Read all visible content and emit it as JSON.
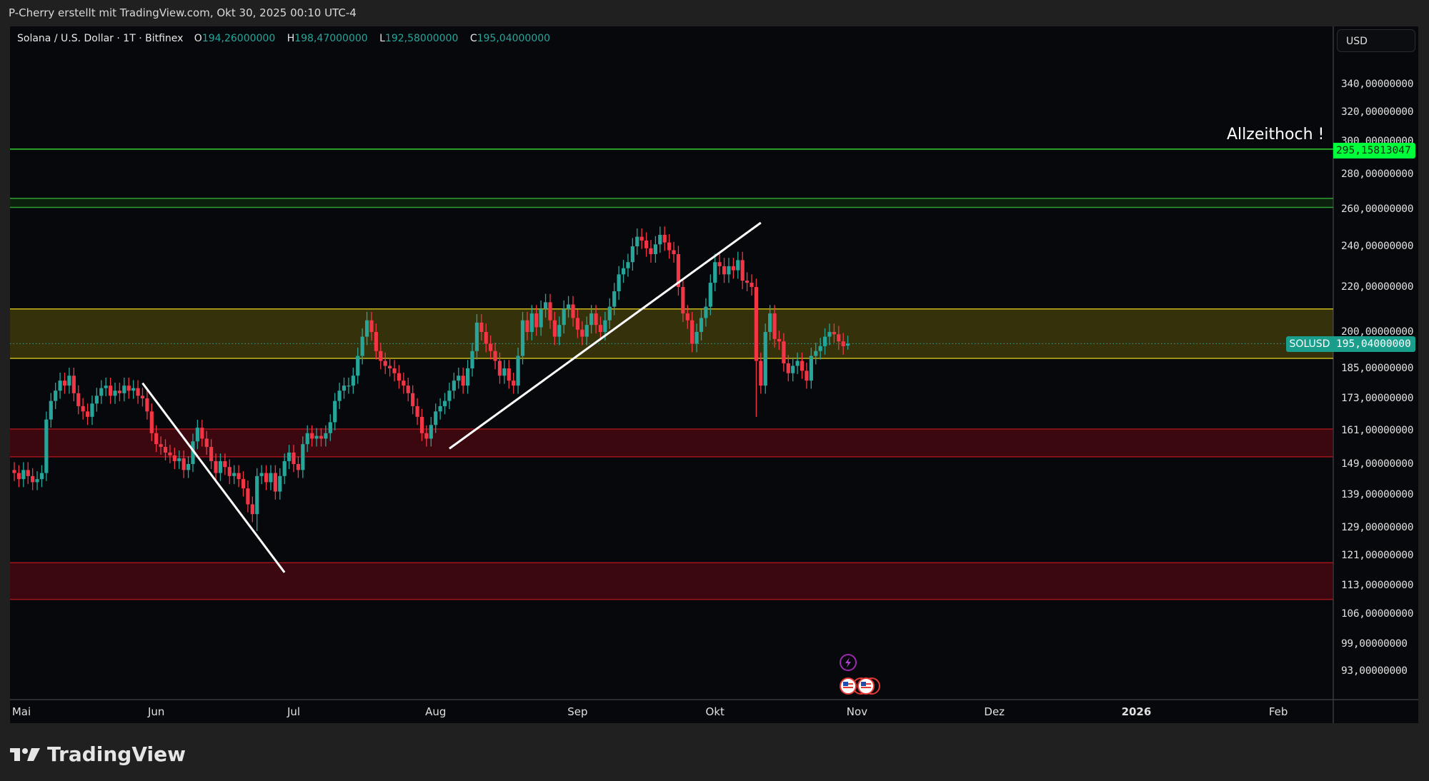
{
  "header": {
    "attribution": "P-Cherry erstellt mit TradingView.com, Okt 30, 2025 00:10 UTC-4"
  },
  "legend": {
    "symbol": "Solana / U.S. Dollar · 1T · Bitfinex",
    "open_label": "O",
    "open": "194,26000000",
    "high_label": "H",
    "high": "198,47000000",
    "low_label": "L",
    "low": "192,58000000",
    "close_label": "C",
    "close": "195,04000000"
  },
  "price_axis": {
    "currency": "USD",
    "ticks": [
      "340,00000000",
      "320,00000000",
      "300,00000000",
      "280,00000000",
      "260,00000000",
      "240,00000000",
      "220,00000000",
      "200,00000000",
      "185,00000000",
      "173,00000000",
      "161,00000000",
      "149,00000000",
      "139,00000000",
      "129,00000000",
      "121,00000000",
      "113,00000000",
      "106,00000000",
      "99,00000000",
      "93,00000000"
    ],
    "ath_label": "295,15813047",
    "last_symbol": "SOLUSD",
    "last_label": "195,04000000"
  },
  "time_axis": {
    "labels": [
      {
        "text": "Mai",
        "date": "2025-05-01"
      },
      {
        "text": "Jun",
        "date": "2025-06-01"
      },
      {
        "text": "Jul",
        "date": "2025-07-01"
      },
      {
        "text": "Aug",
        "date": "2025-08-01"
      },
      {
        "text": "Sep",
        "date": "2025-09-01"
      },
      {
        "text": "Okt",
        "date": "2025-10-01"
      },
      {
        "text": "Nov",
        "date": "2025-11-01"
      },
      {
        "text": "Dez",
        "date": "2025-12-01"
      },
      {
        "text": "2026",
        "date": "2026-01-01",
        "bold": true
      },
      {
        "text": "Feb",
        "date": "2026-02-01"
      }
    ]
  },
  "annotations": {
    "ath_text": "Allzeithoch !"
  },
  "branding": {
    "logo_text": "TradingView"
  },
  "colors": {
    "up": "#26a69a",
    "down": "#f23645",
    "background": "#07080c",
    "ath_line": "#2fd12f",
    "yellow_zone": "#d4c21c",
    "red_zone": "#b71c1c",
    "trendline": "#ffffff"
  },
  "chart_data": {
    "type": "candlestick",
    "title": "Solana / U.S. Dollar · 1T · Bitfinex",
    "start_date": "2025-05-01",
    "interval": "1 day",
    "y_scale": "log",
    "ylim": [
      90,
      350
    ],
    "closes": [
      146,
      144,
      147,
      145,
      143,
      144,
      146,
      165,
      172,
      176,
      180,
      178,
      182,
      175,
      170,
      168,
      166,
      171,
      174,
      177,
      178,
      174,
      176,
      175,
      178,
      176,
      177,
      174,
      173,
      168,
      160,
      156,
      155,
      153,
      152,
      150,
      151,
      147,
      149,
      157,
      162,
      158,
      155,
      150,
      146,
      150,
      148,
      145,
      146,
      144,
      141,
      136,
      133,
      145,
      146,
      143,
      146,
      140,
      145,
      150,
      153,
      149,
      147,
      156,
      160,
      158,
      159,
      158,
      160,
      164,
      172,
      176,
      178,
      178,
      182,
      190,
      198,
      205,
      200,
      192,
      188,
      186,
      185,
      183,
      180,
      178,
      175,
      170,
      166,
      160,
      158,
      163,
      168,
      170,
      172,
      176,
      180,
      182,
      178,
      185,
      192,
      204,
      200,
      195,
      192,
      188,
      182,
      185,
      180,
      178,
      190,
      205,
      200,
      208,
      202,
      210,
      213,
      205,
      198,
      203,
      210,
      212,
      206,
      201,
      198,
      203,
      208,
      203,
      200,
      205,
      211,
      218,
      226,
      229,
      232,
      240,
      245,
      243,
      239,
      236,
      241,
      246,
      242,
      238,
      236,
      220,
      208,
      205,
      195,
      200,
      206,
      211,
      222,
      232,
      230,
      226,
      230,
      228,
      233,
      223,
      222,
      220,
      188,
      178,
      200,
      208,
      197,
      196,
      187,
      183,
      186,
      188,
      184,
      180,
      190,
      192,
      194,
      198,
      200,
      199,
      196,
      194,
      195.04
    ],
    "first_open": 147,
    "last_candle": {
      "open": 194.26,
      "high": 198.47,
      "low": 192.58,
      "close": 195.04
    },
    "notable_lows": [
      {
        "date": "2025-10-10",
        "low": 166
      },
      {
        "date": "2025-06-23",
        "low": 128
      }
    ],
    "horizontal_lines": [
      {
        "price": 295.15813047,
        "color": "#2fd12f"
      }
    ],
    "zones": [
      {
        "from": 261,
        "to": 266,
        "color": "green"
      },
      {
        "from": 189,
        "to": 210,
        "color": "yellow"
      },
      {
        "from": 151.5,
        "to": 161.5,
        "color": "red"
      },
      {
        "from": 109.5,
        "to": 119,
        "color": "red"
      }
    ],
    "trendlines": [
      {
        "from": {
          "date": "2025-05-29",
          "price": 179
        },
        "to": {
          "date": "2025-06-29",
          "price": 116.4
        }
      },
      {
        "from": {
          "date": "2025-08-04",
          "price": 154.4
        },
        "to": {
          "date": "2025-10-11",
          "price": 252.5
        }
      }
    ],
    "current_price_line": 195.04
  }
}
